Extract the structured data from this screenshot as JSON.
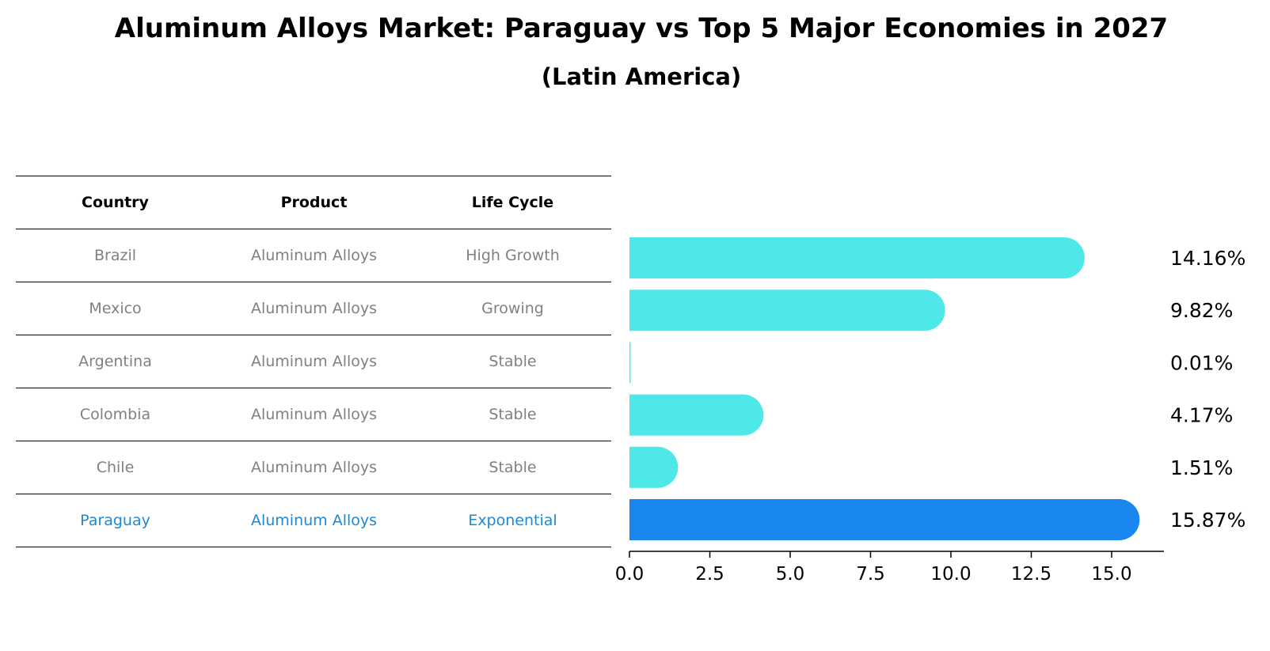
{
  "title": "Aluminum Alloys Market: Paraguay vs Top 5 Major Economies in 2027",
  "subtitle": "(Latin America)",
  "table": {
    "headers": [
      "Country",
      "Product",
      "Life Cycle"
    ],
    "rows": [
      [
        "Brazil",
        "Aluminum Alloys",
        "High Growth"
      ],
      [
        "Mexico",
        "Aluminum Alloys",
        "Growing"
      ],
      [
        "Argentina",
        "Aluminum Alloys",
        "Stable"
      ],
      [
        "Colombia",
        "Aluminum Alloys",
        "Stable"
      ],
      [
        "Chile",
        "Aluminum Alloys",
        "Stable"
      ],
      [
        "Paraguay",
        "Aluminum Alloys",
        "Exponential"
      ]
    ]
  },
  "colors": {
    "bar": "#4ee8e8",
    "highlight": "#1a87f0",
    "highlight_text": "#1e88d6",
    "muted_text": "#808080"
  },
  "chart_data": {
    "type": "bar",
    "orientation": "horizontal",
    "categories": [
      "Brazil",
      "Mexico",
      "Argentina",
      "Colombia",
      "Chile",
      "Paraguay"
    ],
    "values": [
      14.16,
      9.82,
      0.01,
      4.17,
      1.51,
      15.87
    ],
    "value_labels": [
      "14.16%",
      "9.82%",
      "0.01%",
      "4.17%",
      "1.51%",
      "15.87%"
    ],
    "highlight": "Paraguay",
    "xlim": [
      0,
      16.5
    ],
    "xticks": [
      0.0,
      2.5,
      5.0,
      7.5,
      10.0,
      12.5,
      15.0
    ],
    "xtick_labels": [
      "0.0",
      "2.5",
      "5.0",
      "7.5",
      "10.0",
      "12.5",
      "15.0"
    ]
  }
}
